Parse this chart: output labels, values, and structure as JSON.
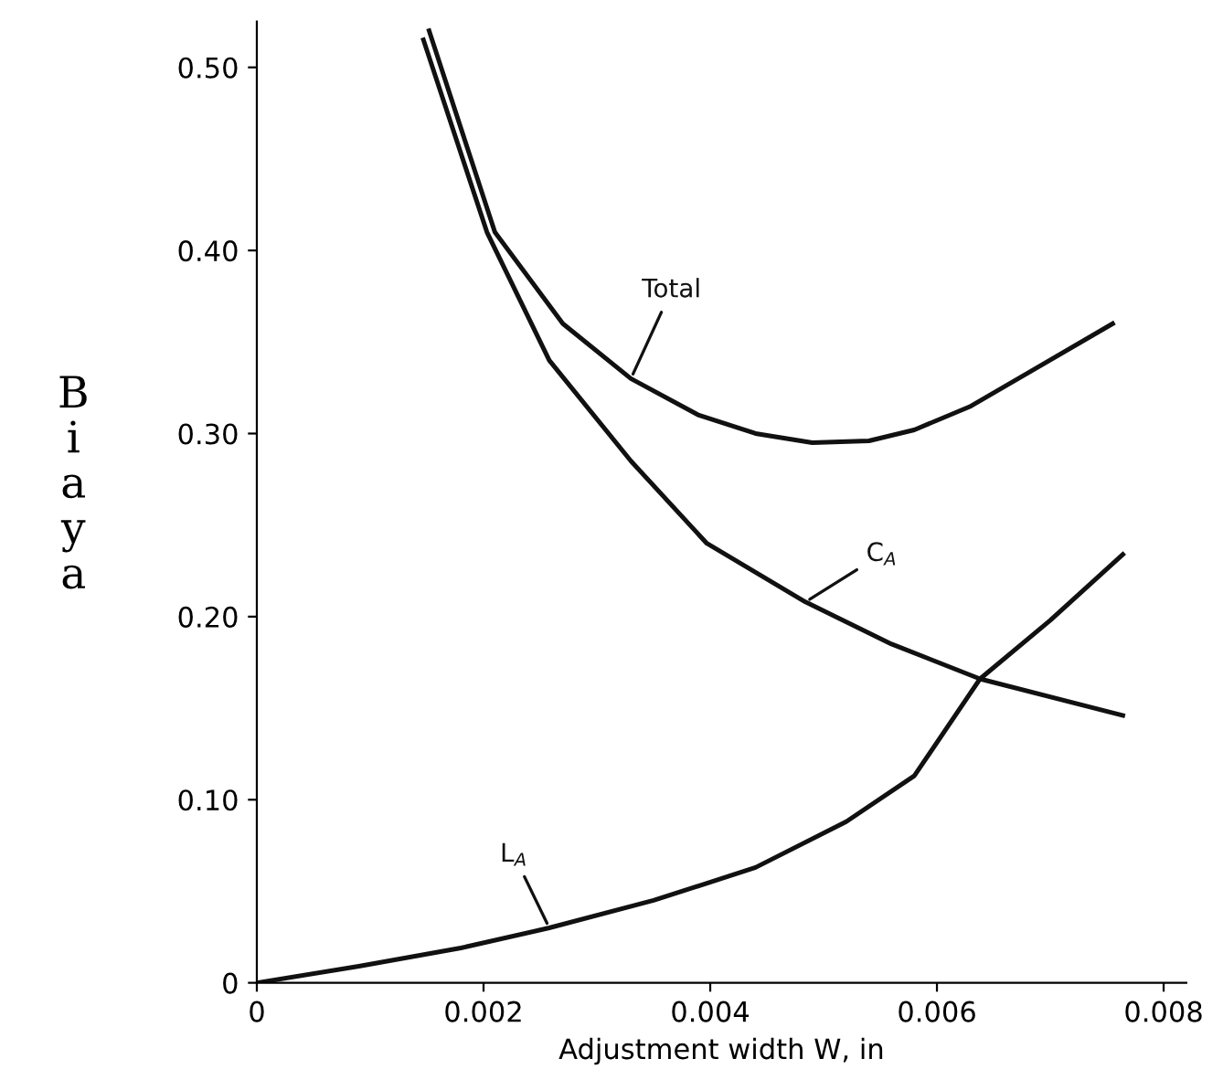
{
  "chart_data": {
    "type": "line",
    "xlabel": "Adjustment width W, in",
    "ylabel": "Biaya",
    "xlim": [
      0,
      0.0082
    ],
    "ylim": [
      0,
      0.525
    ],
    "xticks": [
      {
        "value": 0,
        "label": "0"
      },
      0.002,
      0.004,
      0.006,
      0.008
    ],
    "yticks": [
      {
        "value": 0,
        "label": "0"
      },
      {
        "value": 0.1,
        "label": "0.10"
      },
      {
        "value": 0.2,
        "label": "0.20"
      },
      {
        "value": 0.3,
        "label": "0.30"
      },
      {
        "value": 0.4,
        "label": "0.40"
      },
      {
        "value": 0.5,
        "label": "0.50"
      }
    ],
    "grid": false,
    "legend": false,
    "marker": "none",
    "line_style": "solid",
    "series": [
      {
        "name": "Total",
        "color": "#111111",
        "x": [
          0.00152,
          0.0021,
          0.0027,
          0.0033,
          0.0039,
          0.0044,
          0.0049,
          0.0054,
          0.0058,
          0.0063,
          0.0068,
          0.00755
        ],
        "values": [
          0.52,
          0.41,
          0.36,
          0.33,
          0.31,
          0.3,
          0.295,
          0.296,
          0.302,
          0.315,
          0.333,
          0.36
        ]
      },
      {
        "name": "C$_{A}$",
        "color": "#111111",
        "x": [
          0.00147,
          0.00203,
          0.00258,
          0.0033,
          0.00397,
          0.00484,
          0.0056,
          0.00638,
          0.00764
        ],
        "values": [
          0.515,
          0.41,
          0.34,
          0.285,
          0.24,
          0.208,
          0.185,
          0.166,
          0.146
        ]
      },
      {
        "name": "L$_{A}$",
        "color": "#111111",
        "x": [
          0,
          0.0009,
          0.0018,
          0.00258,
          0.0035,
          0.0044,
          0.0052,
          0.0058,
          0.00638,
          0.007,
          0.00764
        ],
        "values": [
          0,
          0.009,
          0.019,
          0.03,
          0.045,
          0.063,
          0.088,
          0.113,
          0.166,
          0.198,
          0.234
        ]
      }
    ]
  }
}
